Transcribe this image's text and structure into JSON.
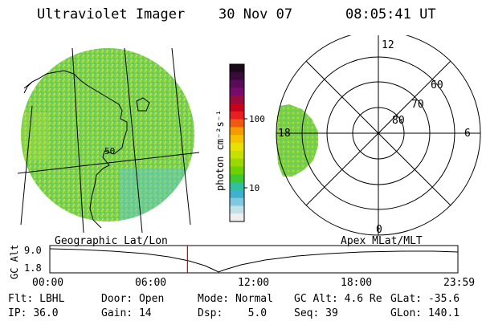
{
  "header": {
    "instrument": "Ultraviolet Imager",
    "date": "30 Nov 07",
    "time": "08:05:41 UT"
  },
  "geo_panel": {
    "contour_label": "50",
    "caption": "Geographic Lat/Lon"
  },
  "colorbar": {
    "label": "photon cm⁻²s⁻¹",
    "ticks": [
      "100",
      "10"
    ],
    "colors": [
      "#1a0a1a",
      "#3a0a3a",
      "#5a0a5a",
      "#7a0a6a",
      "#9a0a3a",
      "#c8001a",
      "#e62020",
      "#f05a10",
      "#f59a00",
      "#f5c000",
      "#e8e000",
      "#c8e000",
      "#9ad800",
      "#6fd000",
      "#40c830",
      "#30c0a0",
      "#40b0d0",
      "#80c8e0",
      "#c0e0ea",
      "#eeeeee"
    ]
  },
  "polar_panel": {
    "mlt_labels": [
      "12",
      "18",
      "6",
      "0"
    ],
    "mlat_labels": [
      "60",
      "70",
      "80"
    ],
    "caption": "Apex MLat/MLT"
  },
  "altitude_plot": {
    "ylabel": "GC Alt",
    "yticks": [
      "9.0",
      "1.8"
    ],
    "xticks": [
      "00:00",
      "06:00",
      "12:00",
      "18:00",
      "23:59"
    ],
    "current_time_fraction": 0.3373
  },
  "footer": {
    "row1": [
      {
        "key": "Flt:",
        "value": "LBHL"
      },
      {
        "key": "Door:",
        "value": "Open"
      },
      {
        "key": "Mode:",
        "value": "Normal"
      },
      {
        "key": "GC Alt:",
        "value": "4.6 Re"
      },
      {
        "key": "GLat:",
        "value": "-35.6"
      }
    ],
    "row2": [
      {
        "key": "IP:",
        "value": "36.0"
      },
      {
        "key": "Gain:",
        "value": "14"
      },
      {
        "key": "Dsp:",
        "value": "5.0"
      },
      {
        "key": "Seq:",
        "value": "39"
      },
      {
        "key": "GLon:",
        "value": "140.1"
      }
    ]
  },
  "accent": {
    "image_green": "#7fd040",
    "time_marker": "#cc0000"
  }
}
